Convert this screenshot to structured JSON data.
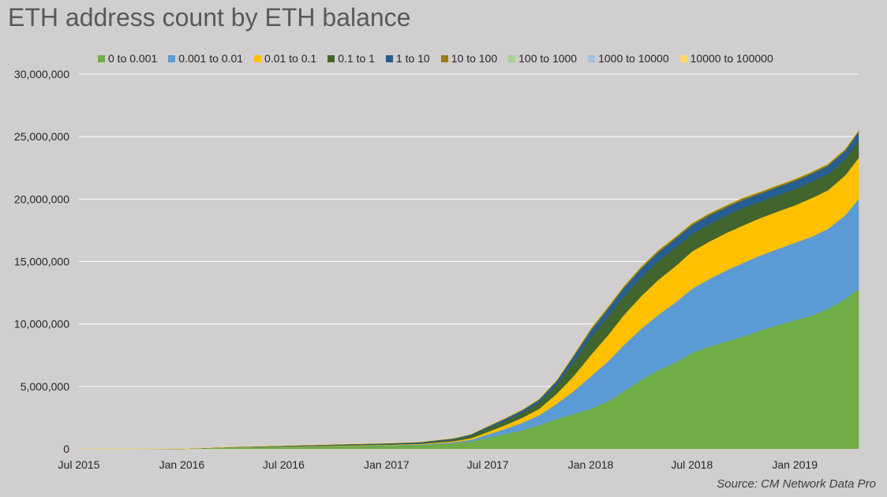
{
  "title": "ETH address count by ETH balance",
  "source": "Source: CM Network Data Pro",
  "chart_data": {
    "type": "area",
    "stacked": true,
    "title": "ETH address count by ETH balance",
    "xlabel": "",
    "ylabel": "",
    "x": [
      "2015-07",
      "2015-10",
      "2016-01",
      "2016-04",
      "2016-07",
      "2016-10",
      "2017-01",
      "2017-03",
      "2017-05",
      "2017-06",
      "2017-07",
      "2017-08",
      "2017-09",
      "2017-10",
      "2017-11",
      "2017-12",
      "2018-01",
      "2018-02",
      "2018-03",
      "2018-04",
      "2018-05",
      "2018-06",
      "2018-07",
      "2018-08",
      "2018-09",
      "2018-10",
      "2018-11",
      "2018-12",
      "2019-01",
      "2019-02",
      "2019-03",
      "2019-04",
      "2019-04-25"
    ],
    "x_ticks": [
      "Jul 2015",
      "Jan 2016",
      "Jul 2016",
      "Jan 2017",
      "Jul 2017",
      "Jan 2018",
      "Jul 2018",
      "Jan 2019"
    ],
    "y_ticks": [
      "0",
      "5,000,000",
      "10,000,000",
      "15,000,000",
      "20,000,000",
      "25,000,000",
      "30,000,000"
    ],
    "ylim": [
      0,
      30000000
    ],
    "legend_position": "top",
    "grid": "horizontal",
    "series": [
      {
        "name": "0 to 0.001",
        "color": "#70ad47",
        "values": [
          0,
          0,
          5000,
          100000,
          150000,
          200000,
          250000,
          300000,
          450000,
          600000,
          900000,
          1200000,
          1500000,
          1900000,
          2400000,
          2800000,
          3200000,
          3800000,
          4600000,
          5500000,
          6300000,
          6900000,
          7700000,
          8200000,
          8600000,
          9000000,
          9500000,
          9900000,
          10300000,
          10700000,
          11200000,
          12000000,
          12800000
        ]
      },
      {
        "name": "0.001 to 0.01",
        "color": "#5b9bd5",
        "values": [
          0,
          0,
          0,
          10000,
          20000,
          30000,
          40000,
          50000,
          80000,
          130000,
          250000,
          400000,
          600000,
          800000,
          1200000,
          1800000,
          2600000,
          3200000,
          3700000,
          4100000,
          4400000,
          4800000,
          5100000,
          5400000,
          5700000,
          5900000,
          6000000,
          6100000,
          6200000,
          6300000,
          6400000,
          6700000,
          7200000
        ]
      },
      {
        "name": "0.01 to 0.1",
        "color": "#ffc000",
        "values": [
          0,
          0,
          0,
          10000,
          20000,
          30000,
          40000,
          50000,
          80000,
          130000,
          200000,
          300000,
          400000,
          500000,
          800000,
          1200000,
          1700000,
          2100000,
          2400000,
          2600000,
          2800000,
          2900000,
          3000000,
          3000000,
          3000000,
          3000000,
          3000000,
          3000000,
          3000000,
          3100000,
          3100000,
          3200000,
          3300000
        ]
      },
      {
        "name": "0.1 to 1",
        "color": "#41652c",
        "values": [
          0,
          0,
          5000,
          20000,
          40000,
          60000,
          70000,
          80000,
          150000,
          200000,
          300000,
          350000,
          400000,
          500000,
          700000,
          1100000,
          1400000,
          1500000,
          1500000,
          1500000,
          1500000,
          1500000,
          1400000,
          1400000,
          1400000,
          1400000,
          1300000,
          1300000,
          1300000,
          1300000,
          1300000,
          1300000,
          1400000
        ]
      },
      {
        "name": "1 to 10",
        "color": "#255e91",
        "values": [
          0,
          0,
          5000,
          15000,
          25000,
          35000,
          45000,
          55000,
          70000,
          90000,
          120000,
          150000,
          180000,
          220000,
          300000,
          450000,
          550000,
          600000,
          650000,
          700000,
          700000,
          700000,
          700000,
          700000,
          650000,
          650000,
          650000,
          650000,
          650000,
          650000,
          650000,
          650000,
          650000
        ]
      },
      {
        "name": "10 to 100",
        "color": "#9e7b0d",
        "values": [
          0,
          0,
          2000,
          5000,
          8000,
          10000,
          12000,
          15000,
          20000,
          25000,
          40000,
          50000,
          60000,
          70000,
          90000,
          120000,
          150000,
          160000,
          160000,
          160000,
          160000,
          150000,
          150000,
          150000,
          150000,
          150000,
          140000,
          140000,
          140000,
          140000,
          140000,
          140000,
          140000
        ]
      },
      {
        "name": "100 to 1000",
        "color": "#a9d18e",
        "values": [
          0,
          0,
          1000,
          2000,
          3000,
          4000,
          5000,
          6000,
          8000,
          10000,
          15000,
          18000,
          20000,
          22000,
          26000,
          30000,
          35000,
          36000,
          36000,
          36000,
          35000,
          35000,
          35000,
          35000,
          34000,
          34000,
          34000,
          34000,
          34000,
          34000,
          34000,
          34000,
          34000
        ]
      },
      {
        "name": "1000 to 10000",
        "color": "#9dc3e6",
        "values": [
          0,
          0,
          500,
          1000,
          1500,
          2000,
          2500,
          3000,
          3500,
          4000,
          5000,
          5500,
          6000,
          6500,
          7000,
          7500,
          8000,
          8000,
          8000,
          8000,
          8000,
          8000,
          8000,
          8000,
          8000,
          8000,
          8000,
          8000,
          8000,
          8000,
          8000,
          8000,
          8000
        ]
      },
      {
        "name": "10000 to 100000",
        "color": "#ffd966",
        "values": [
          0,
          0,
          100,
          200,
          300,
          400,
          500,
          600,
          700,
          800,
          900,
          1000,
          1000,
          1000,
          1100,
          1100,
          1100,
          1100,
          1100,
          1100,
          1100,
          1100,
          1100,
          1100,
          1100,
          1100,
          1100,
          1100,
          1100,
          1100,
          1100,
          1100,
          1100
        ]
      }
    ]
  }
}
